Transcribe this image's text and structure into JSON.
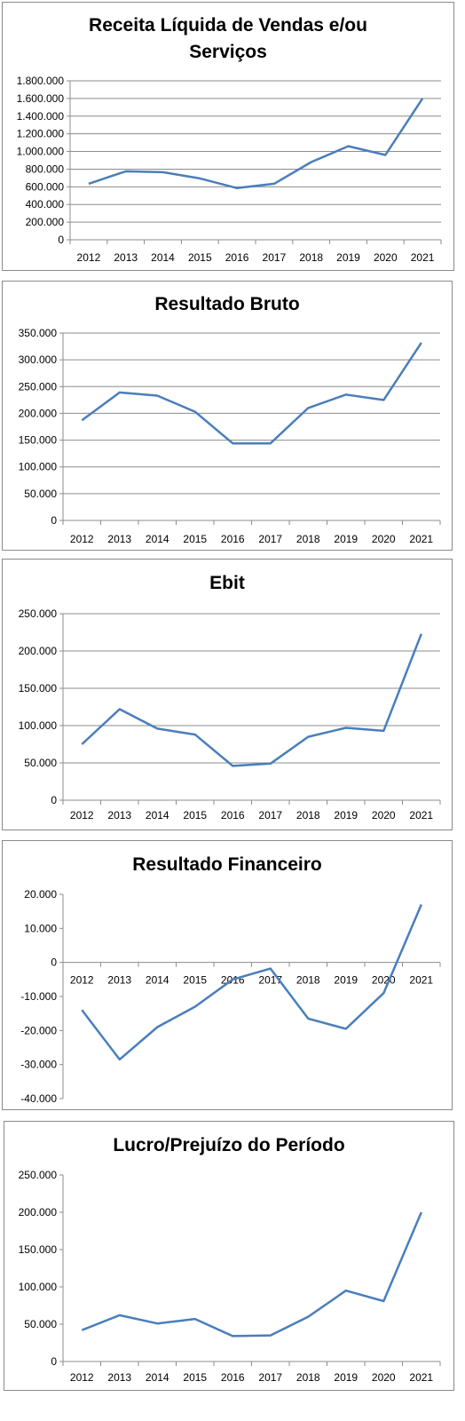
{
  "chart_data": [
    {
      "type": "line",
      "title": "Receita Líquida de Vendas e/ou Serviços",
      "categories": [
        "2012",
        "2013",
        "2014",
        "2015",
        "2016",
        "2017",
        "2018",
        "2019",
        "2020",
        "2021"
      ],
      "values": [
        635000,
        775000,
        765000,
        695000,
        585000,
        635000,
        880000,
        1060000,
        960000,
        1600000
      ],
      "ylim": [
        0,
        1800000
      ],
      "yticks": [
        0,
        200000,
        400000,
        600000,
        800000,
        1000000,
        1200000,
        1400000,
        1600000,
        1800000
      ],
      "ytick_labels": [
        "0",
        "200.000",
        "400.000",
        "600.000",
        "800.000",
        "1.000.000",
        "1.200.000",
        "1.400.000",
        "1.600.000",
        "1.800.000"
      ],
      "grid": true,
      "line_color": "#4a7ebb"
    },
    {
      "type": "line",
      "title": "Resultado Bruto",
      "categories": [
        "2012",
        "2013",
        "2014",
        "2015",
        "2016",
        "2017",
        "2018",
        "2019",
        "2020",
        "2021"
      ],
      "values": [
        187000,
        239000,
        233000,
        203000,
        144000,
        144000,
        210000,
        235000,
        225000,
        332000
      ],
      "ylim": [
        0,
        350000
      ],
      "yticks": [
        0,
        50000,
        100000,
        150000,
        200000,
        250000,
        300000,
        350000
      ],
      "ytick_labels": [
        "0",
        "50.000",
        "100.000",
        "150.000",
        "200.000",
        "250.000",
        "300.000",
        "350.000"
      ],
      "grid": true,
      "line_color": "#4a7ebb"
    },
    {
      "type": "line",
      "title": "Ebit",
      "categories": [
        "2012",
        "2013",
        "2014",
        "2015",
        "2016",
        "2017",
        "2018",
        "2019",
        "2020",
        "2021"
      ],
      "values": [
        75000,
        122000,
        96000,
        88000,
        46000,
        49000,
        85000,
        97000,
        93000,
        223000
      ],
      "ylim": [
        0,
        250000
      ],
      "yticks": [
        0,
        50000,
        100000,
        150000,
        200000,
        250000
      ],
      "ytick_labels": [
        "0",
        "50.000",
        "100.000",
        "150.000",
        "200.000",
        "250.000"
      ],
      "grid": true,
      "line_color": "#4a7ebb"
    },
    {
      "type": "line",
      "title": "Resultado Financeiro",
      "categories": [
        "2012",
        "2013",
        "2014",
        "2015",
        "2016",
        "2017",
        "2018",
        "2019",
        "2020",
        "2021"
      ],
      "values": [
        -14000,
        -28500,
        -19000,
        -13000,
        -5000,
        -1800,
        -16500,
        -19500,
        -9000,
        17000
      ],
      "ylim": [
        -40000,
        20000
      ],
      "yticks": [
        -40000,
        -30000,
        -20000,
        -10000,
        0,
        10000,
        20000
      ],
      "ytick_labels": [
        "-40.000",
        "-30.000",
        "-20.000",
        "-10.000",
        "0",
        "10.000",
        "20.000"
      ],
      "grid": false,
      "line_color": "#4a7ebb"
    },
    {
      "type": "line",
      "title": "Lucro/Prejuízo do Período",
      "categories": [
        "2012",
        "2013",
        "2014",
        "2015",
        "2016",
        "2017",
        "2018",
        "2019",
        "2020",
        "2021"
      ],
      "values": [
        42000,
        62000,
        51000,
        57000,
        34000,
        35000,
        60000,
        95000,
        81000,
        200000
      ],
      "ylim": [
        0,
        250000
      ],
      "yticks": [
        0,
        50000,
        100000,
        150000,
        200000,
        250000
      ],
      "ytick_labels": [
        "0",
        "50.000",
        "100.000",
        "150.000",
        "200.000",
        "250.000"
      ],
      "grid": false,
      "line_color": "#4a7ebb"
    }
  ]
}
